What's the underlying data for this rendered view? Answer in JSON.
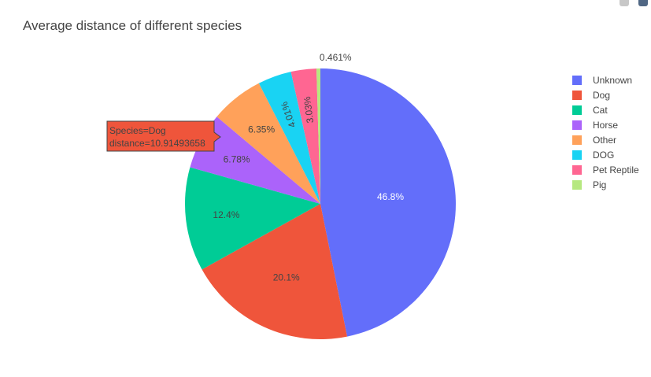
{
  "chart_data": {
    "type": "pie",
    "title": "Average distance of different species",
    "legend_position": "right",
    "slices": [
      {
        "label": "Unknown",
        "percent_label": "46.8%",
        "value": 46.8,
        "color": "#636efa"
      },
      {
        "label": "Dog",
        "percent_label": "20.1%",
        "value": 20.1,
        "color": "#EF553B"
      },
      {
        "label": "Cat",
        "percent_label": "12.4%",
        "value": 12.4,
        "color": "#00cc96"
      },
      {
        "label": "Horse",
        "percent_label": "6.78%",
        "value": 6.78,
        "color": "#ab63fa"
      },
      {
        "label": "Other",
        "percent_label": "6.35%",
        "value": 6.35,
        "color": "#FFA15A"
      },
      {
        "label": "DOG",
        "percent_label": "4.01%",
        "value": 4.01,
        "color": "#19d3f3"
      },
      {
        "label": "Pet Reptile",
        "percent_label": "3.03%",
        "value": 3.03,
        "color": "#FF6692"
      },
      {
        "label": "Pig",
        "percent_label": "0.461%",
        "value": 0.461,
        "color": "#B6E880"
      }
    ],
    "hover": {
      "line1": "Species=Dog",
      "line2": "distance=10.91493658"
    }
  }
}
